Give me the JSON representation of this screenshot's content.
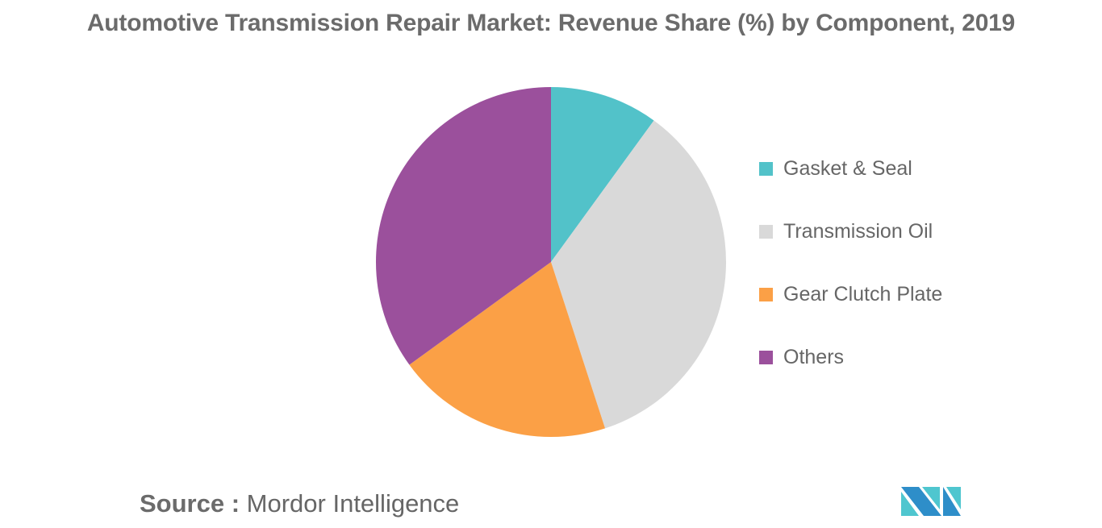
{
  "title": "Automotive Transmission Repair Market: Revenue Share (%) by Component, 2019",
  "source": {
    "key": "Source :",
    "value": "Mordor Intelligence"
  },
  "logo": {
    "icon": "mordor-intelligence-logo-icon",
    "colors": [
      "#2e8ec9",
      "#4fc6cf"
    ]
  },
  "legend": {
    "position": "right",
    "items": [
      {
        "label": "Gasket & Seal",
        "color": "#52c2c9"
      },
      {
        "label": "Transmission Oil",
        "color": "#d9d9d9"
      },
      {
        "label": "Gear Clutch Plate",
        "color": "#fba046"
      },
      {
        "label": "Others",
        "color": "#9b509c"
      }
    ]
  },
  "chart_data": {
    "type": "pie",
    "title": "Automotive Transmission Repair Market: Revenue Share (%) by Component, 2019",
    "categories": [
      "Gasket & Seal",
      "Transmission Oil",
      "Gear Clutch Plate",
      "Others"
    ],
    "values": [
      10,
      35,
      20,
      35
    ],
    "colors": [
      "#52c2c9",
      "#d9d9d9",
      "#fba046",
      "#9b509c"
    ],
    "unit": "%",
    "start_angle": "12 o'clock",
    "direction": "clockwise",
    "data_labels": false,
    "legend_position": "right",
    "source": "Mordor Intelligence"
  }
}
